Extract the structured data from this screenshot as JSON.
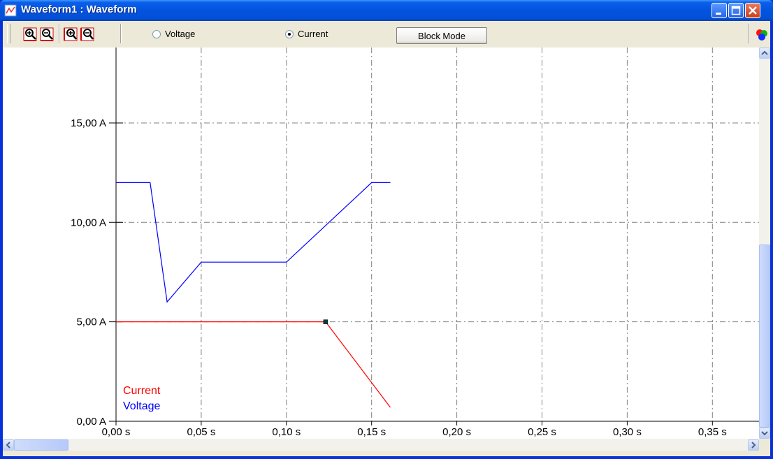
{
  "window": {
    "title": "Waveform1 : Waveform",
    "icons": [
      "waveform-app-icon",
      "minimize-icon",
      "maximize-icon",
      "close-icon"
    ]
  },
  "toolbar": {
    "zoom_icons": [
      "zoom-in-x-icon",
      "zoom-out-x-icon",
      "zoom-in-y-icon",
      "zoom-out-y-icon"
    ],
    "voltage_label": "Voltage",
    "current_label": "Current",
    "selected_mode": "Current",
    "block_mode_label": "Block Mode",
    "colors_icon": "colors-icon"
  },
  "colors": {
    "current": "#ff0000",
    "voltage": "#0000ff",
    "grid": "#808080",
    "title_bar": "#0353e0"
  },
  "chart_data": {
    "type": "line",
    "x_tick_labels": [
      "0,00 s",
      "0,05 s",
      "0,10 s",
      "0,15 s",
      "0,20 s",
      "0,25 s",
      "0,30 s",
      "0,35 s"
    ],
    "x_ticks": [
      0,
      0.05,
      0.1,
      0.15,
      0.2,
      0.25,
      0.3,
      0.35
    ],
    "y_tick_labels": [
      "0,00 A",
      "5,00 A",
      "10,00 A",
      "15,00 A"
    ],
    "y_ticks": [
      0,
      5,
      10,
      15
    ],
    "xlim": [
      0,
      0.378
    ],
    "ylim": [
      0,
      16.5
    ],
    "grid": true,
    "legend": "bottom-left",
    "series": [
      {
        "name": "Current",
        "color": "#ff0000",
        "x": [
          0,
          0.123,
          0.161
        ],
        "y": [
          5,
          5,
          0.7
        ]
      },
      {
        "name": "Voltage",
        "color": "#0000ff",
        "x": [
          0,
          0.02,
          0.03,
          0.05,
          0.1,
          0.15,
          0.161
        ],
        "y": [
          12,
          12,
          6,
          8,
          8,
          12,
          12
        ]
      }
    ],
    "marker": {
      "x": 0.123,
      "y": 5
    }
  }
}
